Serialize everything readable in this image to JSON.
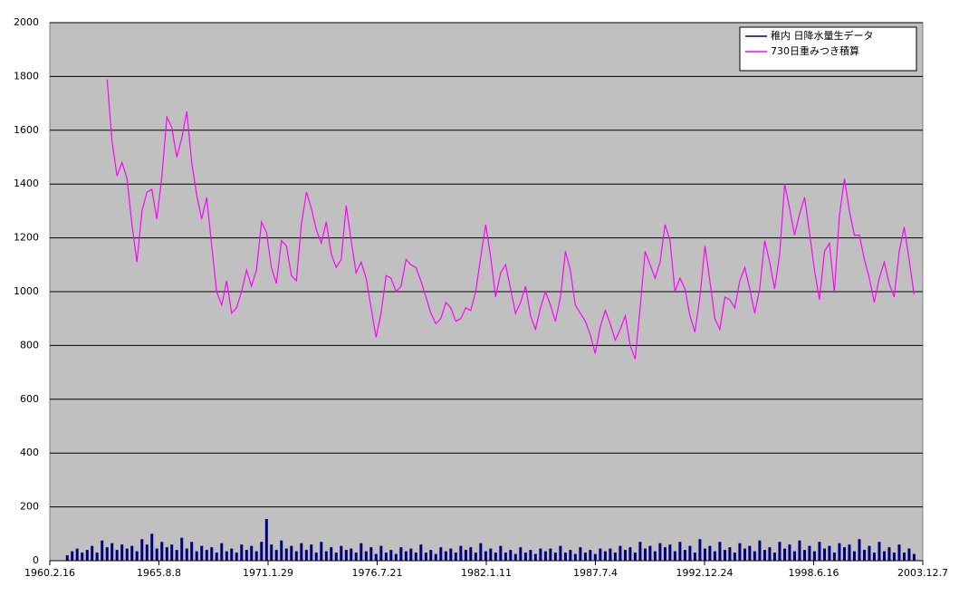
{
  "chart_data": {
    "type": "line",
    "x": [
      "1961.1.1",
      "1961.4.1",
      "1961.7.1",
      "1961.10.1",
      "1962.1.1",
      "1962.4.1",
      "1962.7.1",
      "1962.10.1",
      "1963.1.1",
      "1963.4.1",
      "1963.7.1",
      "1963.10.1",
      "1964.1.1",
      "1964.4.1",
      "1964.7.1",
      "1964.10.1",
      "1965.1.1",
      "1965.4.1",
      "1965.7.1",
      "1965.10.1",
      "1966.1.1",
      "1966.4.1",
      "1966.7.1",
      "1966.10.1",
      "1967.1.1",
      "1967.4.1",
      "1967.7.1",
      "1967.10.1",
      "1968.1.1",
      "1968.4.1",
      "1968.7.1",
      "1968.10.1",
      "1969.1.1",
      "1969.4.1",
      "1969.7.1",
      "1969.10.1",
      "1970.1.1",
      "1970.4.1",
      "1970.7.1",
      "1970.10.1",
      "1971.1.1",
      "1971.4.1",
      "1971.7.1",
      "1971.10.1",
      "1972.1.1",
      "1972.4.1",
      "1972.7.1",
      "1972.10.1",
      "1973.1.1",
      "1973.4.1",
      "1973.7.1",
      "1973.10.1",
      "1974.1.1",
      "1974.4.1",
      "1974.7.1",
      "1974.10.1",
      "1975.1.1",
      "1975.4.1",
      "1975.7.1",
      "1975.10.1",
      "1976.1.1",
      "1976.4.1",
      "1976.7.1",
      "1976.10.1",
      "1977.1.1",
      "1977.4.1",
      "1977.7.1",
      "1977.10.1",
      "1978.1.1",
      "1978.4.1",
      "1978.7.1",
      "1978.10.1",
      "1979.1.1",
      "1979.4.1",
      "1979.7.1",
      "1979.10.1",
      "1980.1.1",
      "1980.4.1",
      "1980.7.1",
      "1980.10.1",
      "1981.1.1",
      "1981.4.1",
      "1981.7.1",
      "1981.10.1",
      "1982.1.1",
      "1982.4.1",
      "1982.7.1",
      "1982.10.1",
      "1983.1.1",
      "1983.4.1",
      "1983.7.1",
      "1983.10.1",
      "1984.1.1",
      "1984.4.1",
      "1984.7.1",
      "1984.10.1",
      "1985.1.1",
      "1985.4.1",
      "1985.7.1",
      "1985.10.1",
      "1986.1.1",
      "1986.4.1",
      "1986.7.1",
      "1986.10.1",
      "1987.1.1",
      "1987.4.1",
      "1987.7.1",
      "1987.10.1",
      "1988.1.1",
      "1988.4.1",
      "1988.7.1",
      "1988.10.1",
      "1989.1.1",
      "1989.4.1",
      "1989.7.1",
      "1989.10.1",
      "1990.1.1",
      "1990.4.1",
      "1990.7.1",
      "1990.10.1",
      "1991.1.1",
      "1991.4.1",
      "1991.7.1",
      "1991.10.1",
      "1992.1.1",
      "1992.4.1",
      "1992.7.1",
      "1992.10.1",
      "1993.1.1",
      "1993.4.1",
      "1993.7.1",
      "1993.10.1",
      "1994.1.1",
      "1994.4.1",
      "1994.7.1",
      "1994.10.1",
      "1995.1.1",
      "1995.4.1",
      "1995.7.1",
      "1995.10.1",
      "1996.1.1",
      "1996.4.1",
      "1996.7.1",
      "1996.10.1",
      "1997.1.1",
      "1997.4.1",
      "1997.7.1",
      "1997.10.1",
      "1998.1.1",
      "1998.4.1",
      "1998.7.1",
      "1998.10.1",
      "1999.1.1",
      "1999.4.1",
      "1999.7.1",
      "1999.10.1",
      "2000.1.1",
      "2000.4.1",
      "2000.7.1",
      "2000.10.1",
      "2001.1.1",
      "2001.4.1",
      "2001.7.1",
      "2001.10.1",
      "2002.1.1",
      "2002.4.1",
      "2002.7.1",
      "2002.10.1",
      "2003.1.1",
      "2003.4.1",
      "2003.7.1"
    ],
    "series": [
      {
        "name": "稚内 日降水量生データ",
        "color": "#000080",
        "type": "bar",
        "values": [
          20,
          35,
          45,
          30,
          40,
          55,
          30,
          75,
          50,
          65,
          40,
          60,
          45,
          55,
          35,
          80,
          60,
          100,
          45,
          70,
          50,
          60,
          40,
          85,
          45,
          70,
          35,
          55,
          40,
          50,
          30,
          65,
          35,
          45,
          30,
          60,
          40,
          55,
          35,
          70,
          155,
          60,
          40,
          75,
          45,
          55,
          35,
          65,
          40,
          60,
          30,
          70,
          35,
          50,
          30,
          55,
          40,
          45,
          30,
          65,
          35,
          50,
          25,
          55,
          30,
          40,
          25,
          50,
          35,
          45,
          30,
          60,
          30,
          40,
          25,
          50,
          35,
          45,
          30,
          55,
          40,
          50,
          30,
          65,
          35,
          45,
          30,
          55,
          30,
          40,
          25,
          50,
          30,
          40,
          25,
          45,
          35,
          45,
          30,
          55,
          30,
          40,
          25,
          50,
          30,
          40,
          25,
          45,
          35,
          45,
          30,
          55,
          40,
          50,
          30,
          70,
          45,
          55,
          35,
          65,
          50,
          60,
          35,
          70,
          40,
          55,
          30,
          80,
          45,
          55,
          35,
          70,
          40,
          50,
          30,
          65,
          45,
          55,
          35,
          75,
          40,
          50,
          30,
          70,
          45,
          60,
          35,
          75,
          40,
          55,
          35,
          70,
          45,
          55,
          30,
          65,
          50,
          60,
          35,
          80,
          40,
          55,
          30,
          70,
          35,
          50,
          30,
          60,
          30,
          45,
          25
        ]
      },
      {
        "name": "730日重みつき積算",
        "color": "#ff00ff",
        "type": "line",
        "values": [
          null,
          null,
          null,
          null,
          null,
          null,
          null,
          null,
          1790,
          1560,
          1430,
          1480,
          1420,
          1250,
          1110,
          1300,
          1370,
          1380,
          1270,
          1430,
          1650,
          1610,
          1500,
          1570,
          1670,
          1480,
          1360,
          1270,
          1350,
          1170,
          1000,
          950,
          1040,
          920,
          940,
          1000,
          1080,
          1020,
          1080,
          1260,
          1220,
          1090,
          1030,
          1190,
          1170,
          1060,
          1040,
          1250,
          1370,
          1310,
          1230,
          1180,
          1260,
          1140,
          1090,
          1120,
          1320,
          1190,
          1070,
          1110,
          1050,
          940,
          830,
          920,
          1060,
          1050,
          1000,
          1020,
          1120,
          1100,
          1090,
          1040,
          980,
          920,
          880,
          900,
          960,
          940,
          890,
          900,
          940,
          930,
          1000,
          1130,
          1250,
          1130,
          980,
          1070,
          1100,
          1010,
          920,
          960,
          1020,
          910,
          860,
          940,
          1000,
          950,
          890,
          980,
          1150,
          1080,
          950,
          920,
          890,
          840,
          770,
          870,
          930,
          880,
          820,
          860,
          910,
          800,
          750,
          940,
          1150,
          1100,
          1050,
          1110,
          1250,
          1190,
          1000,
          1050,
          1010,
          910,
          850,
          980,
          1170,
          1040,
          900,
          860,
          980,
          970,
          940,
          1040,
          1090,
          1010,
          920,
          1010,
          1190,
          1110,
          1010,
          1140,
          1400,
          1310,
          1210,
          1290,
          1350,
          1220,
          1080,
          970,
          1150,
          1180,
          1000,
          1280,
          1420,
          1300,
          1210,
          1210,
          1120,
          1050,
          960,
          1050,
          1110,
          1030,
          980,
          1150,
          1240,
          1120,
          990
        ]
      }
    ],
    "xlim": [
      "1960.2.16",
      "2003.12.7"
    ],
    "xticks": [
      "1960.2.16",
      "1965.8.8",
      "1971.1.29",
      "1976.7.21",
      "1982.1.11",
      "1987.7.4",
      "1992.12.24",
      "1998.6.16",
      "2003.12.7"
    ],
    "ylim": [
      0,
      2000
    ],
    "yticks": [
      0,
      200,
      400,
      600,
      800,
      1000,
      1200,
      1400,
      1600,
      1800,
      2000
    ],
    "grid": true,
    "legend": "top-right"
  }
}
